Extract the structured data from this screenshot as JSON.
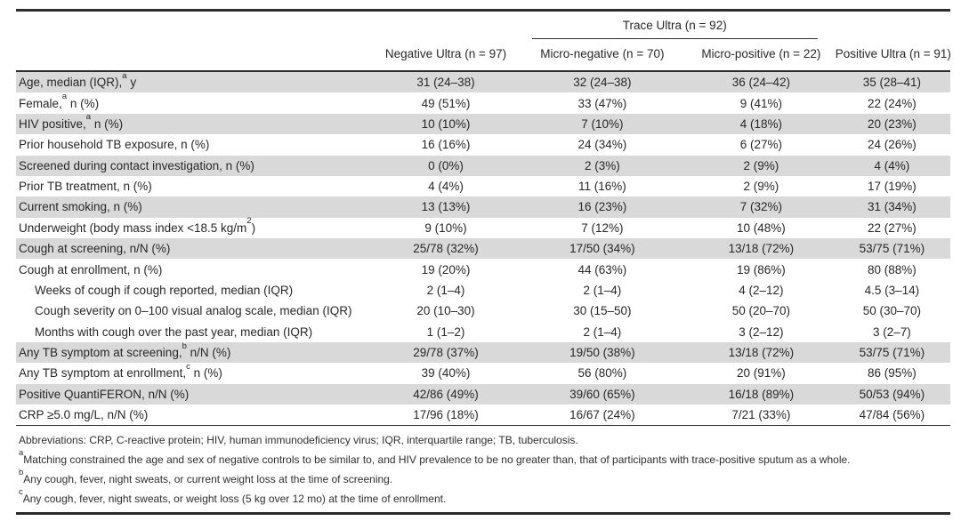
{
  "colors": {
    "row_shade": "#d9d9d9",
    "rule": "#2e2e2e",
    "text": "#272727"
  },
  "table": {
    "spanner_label": "Trace Ultra (n = 92)",
    "columns": [
      "Negative Ultra (n = 97)",
      "Micro-negative (n = 70)",
      "Micro-positive (n = 22)",
      "Positive Ultra (n = 91)"
    ],
    "rows": [
      {
        "pre": "Age, median (IQR),",
        "sup": "a",
        "post": " y",
        "indent": false,
        "shaded": true,
        "values": [
          "31 (24–38)",
          "32 (24–38)",
          "36 (24–42)",
          "35 (28–41)"
        ]
      },
      {
        "pre": "Female,",
        "sup": "a",
        "post": " n (%)",
        "indent": false,
        "shaded": false,
        "values": [
          "49 (51%)",
          "33 (47%)",
          "9 (41%)",
          "22 (24%)"
        ]
      },
      {
        "pre": "HIV positive,",
        "sup": "a",
        "post": " n (%)",
        "indent": false,
        "shaded": true,
        "values": [
          "10 (10%)",
          "7 (10%)",
          "4 (18%)",
          "20 (23%)"
        ]
      },
      {
        "pre": "Prior household TB exposure, n (%)",
        "indent": false,
        "shaded": false,
        "values": [
          "16 (16%)",
          "24 (34%)",
          "6 (27%)",
          "24 (26%)"
        ]
      },
      {
        "pre": "Screened during contact investigation, n (%)",
        "indent": false,
        "shaded": true,
        "values": [
          "0 (0%)",
          "2 (3%)",
          "2 (9%)",
          "4 (4%)"
        ]
      },
      {
        "pre": "Prior TB treatment, n (%)",
        "indent": false,
        "shaded": false,
        "values": [
          "4 (4%)",
          "11 (16%)",
          "2 (9%)",
          "17 (19%)"
        ]
      },
      {
        "pre": "Current smoking, n (%)",
        "indent": false,
        "shaded": true,
        "values": [
          "13 (13%)",
          "16 (23%)",
          "7 (32%)",
          "31 (34%)"
        ]
      },
      {
        "pre": "Underweight (body mass index <18.5 kg/m",
        "sup": "2",
        "post": ")",
        "indent": false,
        "shaded": false,
        "values": [
          "9 (10%)",
          "7 (12%)",
          "10 (48%)",
          "22 (27%)"
        ]
      },
      {
        "pre": "Cough at screening, n/N (%)",
        "indent": false,
        "shaded": true,
        "values": [
          "25/78 (32%)",
          "17/50 (34%)",
          "13/18 (72%)",
          "53/75 (71%)"
        ]
      },
      {
        "pre": "Cough at enrollment, n (%)",
        "indent": false,
        "shaded": false,
        "values": [
          "19 (20%)",
          "44 (63%)",
          "19 (86%)",
          "80 (88%)"
        ]
      },
      {
        "pre": "Weeks of cough if cough reported, median (IQR)",
        "indent": true,
        "shaded": false,
        "values": [
          "2 (1–4)",
          "2 (1–4)",
          "4 (2–12)",
          "4.5 (3–14)"
        ]
      },
      {
        "pre": "Cough severity on 0–100 visual analog scale, median (IQR)",
        "indent": true,
        "shaded": false,
        "values": [
          "20 (10–30)",
          "30 (15–50)",
          "50 (20–70)",
          "50 (30–70)"
        ]
      },
      {
        "pre": "Months with cough over the past year, median (IQR)",
        "indent": true,
        "shaded": false,
        "values": [
          "1 (1–2)",
          "2 (1–4)",
          "3 (2–12)",
          "3 (2–7)"
        ]
      },
      {
        "pre": "Any TB symptom at screening,",
        "sup": "b",
        "post": " n/N (%)",
        "indent": false,
        "shaded": true,
        "values": [
          "29/78 (37%)",
          "19/50 (38%)",
          "13/18 (72%)",
          "53/75 (71%)"
        ]
      },
      {
        "pre": "Any TB symptom at enrollment,",
        "sup": "c",
        "post": " n (%)",
        "indent": false,
        "shaded": false,
        "values": [
          "39 (40%)",
          "56 (80%)",
          "20 (91%)",
          "86 (95%)"
        ]
      },
      {
        "pre": "Positive QuantiFERON, n/N (%)",
        "indent": false,
        "shaded": true,
        "values": [
          "42/86 (49%)",
          "39/60 (65%)",
          "16/18 (89%)",
          "50/53 (94%)"
        ]
      },
      {
        "pre": "CRP ≥5.0 mg/L, n/N (%)",
        "indent": false,
        "shaded": false,
        "values": [
          "17/96 (18%)",
          "16/67 (24%)",
          "7/21 (33%)",
          "47/84 (56%)"
        ]
      }
    ]
  },
  "footnotes": {
    "abbreviations": "Abbreviations: CRP, C-reactive protein; HIV, human immunodeficiency virus; IQR, interquartile range; TB, tuberculosis.",
    "notes": [
      {
        "sup": "a",
        "text": "Matching constrained the age and sex of negative controls to be similar to, and HIV prevalence to be no greater than, that of participants with trace-positive sputum as a whole."
      },
      {
        "sup": "b",
        "text": "Any cough, fever, night sweats, or current weight loss at the time of screening."
      },
      {
        "sup": "c",
        "text": "Any cough, fever, night sweats, or weight loss (5 kg over 12 mo) at the time of enrollment."
      }
    ]
  }
}
